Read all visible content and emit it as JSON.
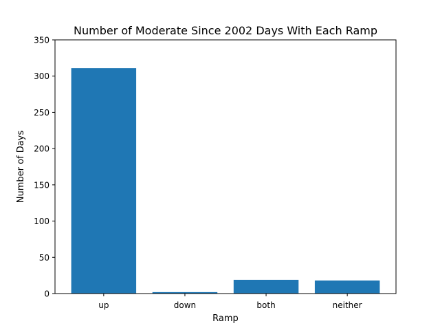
{
  "chart_data": {
    "type": "bar",
    "title": "Number of Moderate Since 2002 Days With Each Ramp",
    "xlabel": "Ramp",
    "ylabel": "Number of Days",
    "categories": [
      "up",
      "down",
      "both",
      "neither"
    ],
    "values": [
      311,
      2,
      19,
      18
    ],
    "ylim": [
      0,
      350
    ],
    "yticks": [
      0,
      50,
      100,
      150,
      200,
      250,
      300,
      350
    ],
    "grid": false,
    "bar_color": "#1f77b4"
  }
}
